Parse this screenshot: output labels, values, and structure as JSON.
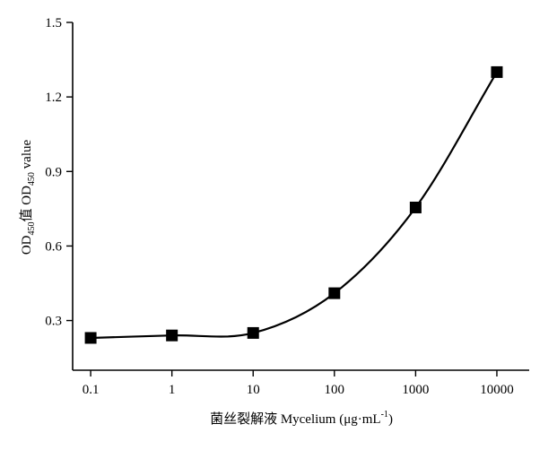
{
  "chart_data": {
    "type": "scatter",
    "x_scale": "log",
    "x": [
      0.1,
      1,
      10,
      100,
      1000,
      10000
    ],
    "y": [
      0.23,
      0.24,
      0.25,
      0.41,
      0.755,
      1.3
    ],
    "x_tick_labels": [
      "0.1",
      "1",
      "10",
      "100",
      "1000",
      "10000"
    ],
    "y_ticks": [
      0.3,
      0.6,
      0.9,
      1.2,
      1.5
    ],
    "y_tick_labels": [
      "0.3",
      "0.6",
      "0.9",
      "1.2",
      "1.5"
    ],
    "xlim": [
      0.06,
      25000
    ],
    "ylim": [
      0.1,
      1.5
    ],
    "xlabel": {
      "prefix": "菌丝裂解液 Mycelium (μg·mL",
      "sup": "-1",
      "suffix": ")"
    },
    "ylabel": {
      "p1": "OD",
      "s1": "450",
      "p2": "值 OD",
      "s2": "450",
      "p3": " value"
    },
    "fit_curve": true,
    "marker": "square",
    "grid": false,
    "legend": "none"
  }
}
